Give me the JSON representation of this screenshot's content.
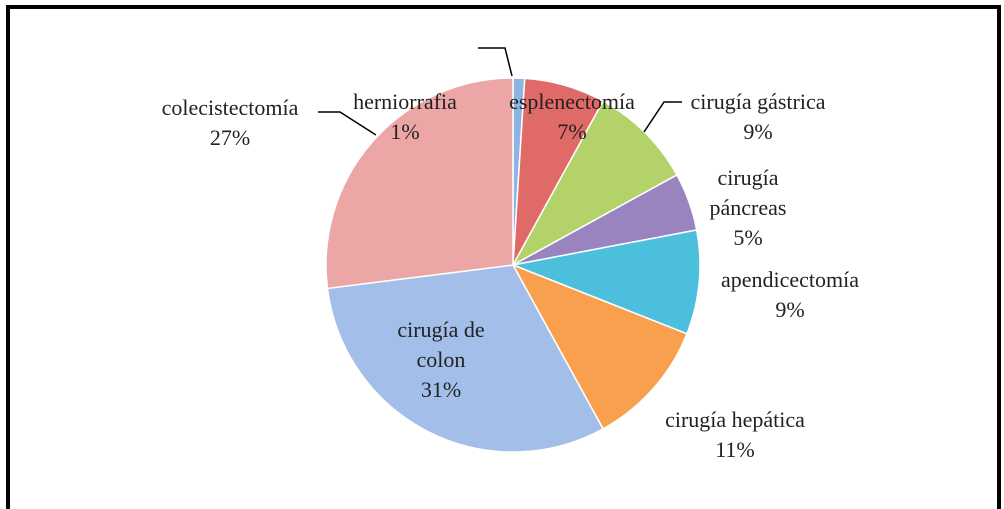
{
  "chart_data": {
    "type": "pie",
    "categories": [
      "herniorrafia",
      "esplenectomía",
      "cirugía gástrica",
      "cirugía páncreas",
      "apendicectomía",
      "cirugía hepática",
      "cirugía de colon",
      "colecistectomía"
    ],
    "values": [
      1,
      7,
      9,
      5,
      9,
      11,
      31,
      27
    ],
    "value_labels": [
      "1%",
      "7%",
      "9%",
      "5%",
      "9%",
      "11%",
      "31%",
      "27%"
    ],
    "colors": [
      "#8eb4e3",
      "#e06a68",
      "#b3d36a",
      "#9a84c0",
      "#4cbfdc",
      "#f9a04e",
      "#a3bfe9",
      "#eca6a6"
    ]
  }
}
